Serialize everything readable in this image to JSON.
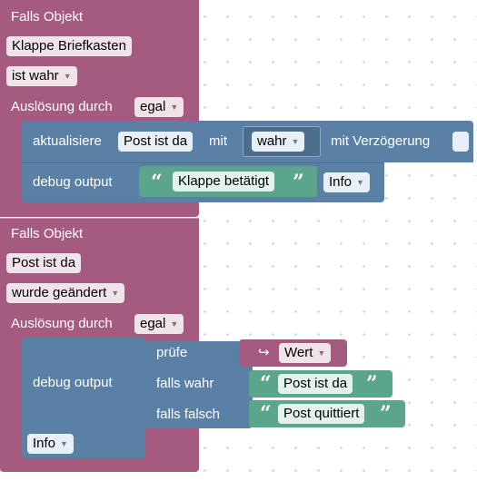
{
  "block1": {
    "header": "Falls Objekt",
    "object": "Klappe Briefkasten",
    "condition": "ist wahr",
    "trigger_label": "Auslösung durch",
    "trigger_value": "egal",
    "update": {
      "label": "aktualisiere",
      "object": "Post ist da",
      "with_label": "mit",
      "value": "wahr",
      "delay_label": "mit Verzögerung"
    },
    "debug": {
      "label": "debug output",
      "text": "Klappe betätigt",
      "level": "Info"
    }
  },
  "block2": {
    "header": "Falls Objekt",
    "object": "Post ist da",
    "condition": "wurde geändert",
    "trigger_label": "Auslösung durch",
    "trigger_value": "egal",
    "debug": {
      "label": "debug output",
      "level": "Info",
      "check_label": "prüfe",
      "check_value": "Wert",
      "if_true_label": "falls wahr",
      "if_true_text": "Post ist da",
      "if_false_label": "falls falsch",
      "if_false_text": "Post quittiert"
    }
  },
  "icons": {
    "dropdown": "dropdown-arrow-icon",
    "quote_open": "open-quote-icon",
    "quote_close": "close-quote-icon",
    "value_arrow": "return-arrow-icon"
  },
  "colors": {
    "trigger_block": "#a55b80",
    "action_block": "#5b80a5",
    "text_block": "#5ba58c"
  }
}
